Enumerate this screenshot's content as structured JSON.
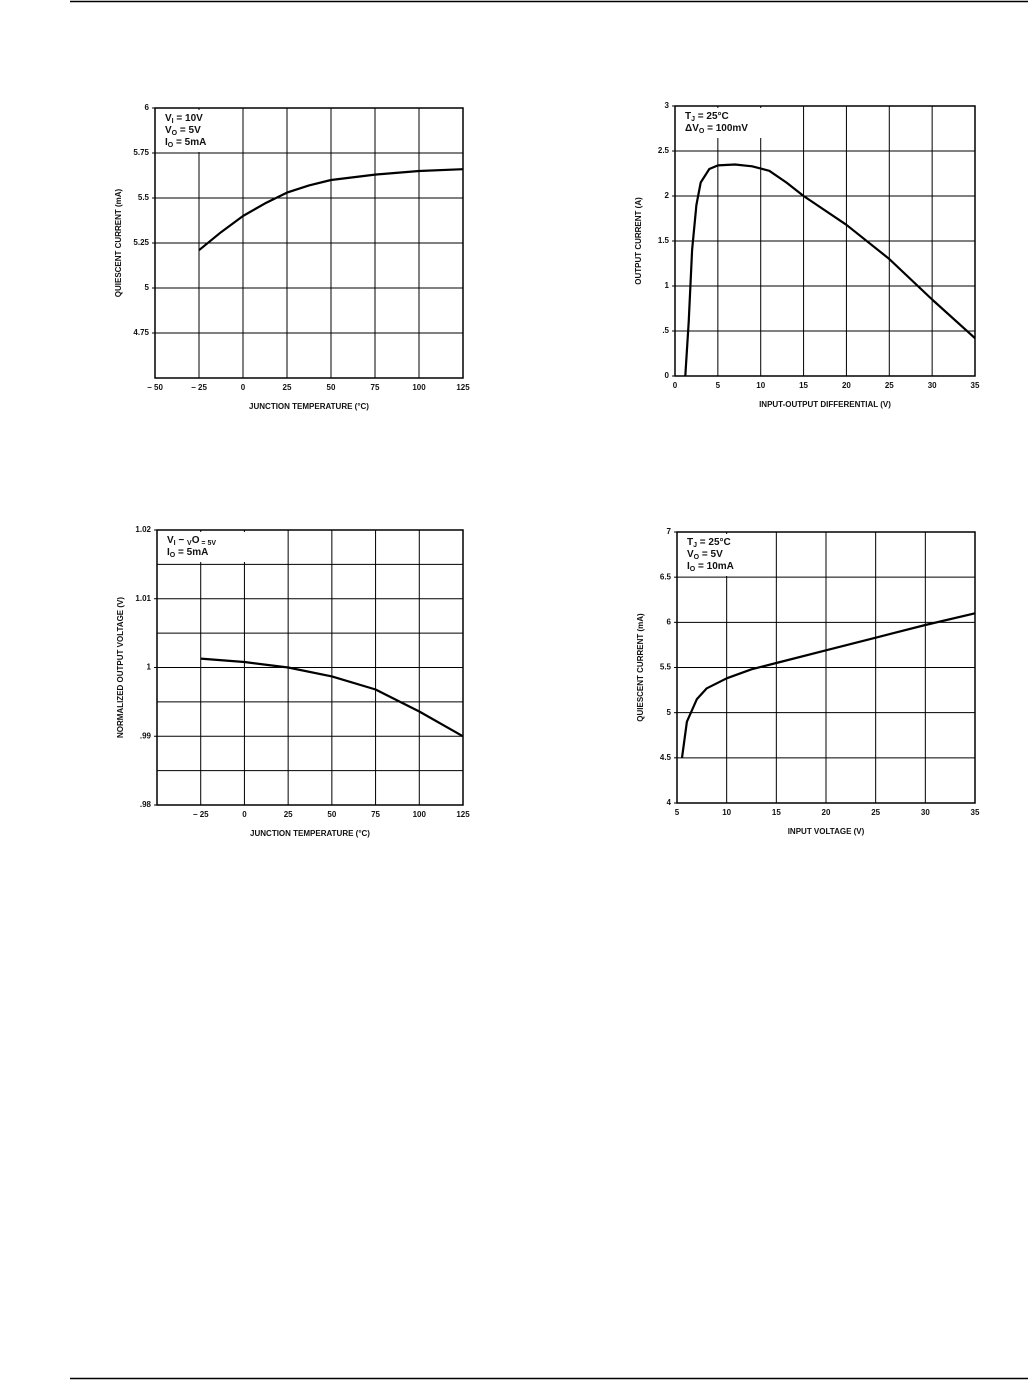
{
  "chart_data": [
    {
      "type": "line",
      "xlabel": "JUNCTION TEMPERATURE (°C)",
      "ylabel": "QUIESCENT CURRENT (mA)",
      "color": "#000000",
      "x": [
        -25,
        -12.5,
        0,
        12.5,
        25,
        37.5,
        50,
        75,
        100,
        125
      ],
      "values": [
        5.21,
        5.31,
        5.4,
        5.47,
        5.53,
        5.57,
        5.6,
        5.63,
        5.65,
        5.66
      ],
      "xlim": [
        -50,
        125
      ],
      "ylim": [
        4.5,
        6
      ],
      "xticks": [
        {
          "value": -50,
          "label": "− 50"
        },
        {
          "value": -25,
          "label": "− 25"
        },
        0,
        25,
        50,
        75,
        100,
        125
      ],
      "yticks": [
        4.75,
        5,
        5.25,
        5.5,
        5.75,
        6
      ],
      "ygrid": [
        4.75,
        5,
        5.25,
        5.5,
        5.75
      ],
      "annotations": [
        [
          "V",
          "I",
          " = 10V"
        ],
        [
          "V",
          "O",
          " = 5V"
        ],
        [
          "I",
          "O",
          " = 5mA"
        ]
      ]
    },
    {
      "type": "line",
      "xlabel": "INPUT-OUTPUT DIFFERENTIAL (V)",
      "ylabel": "OUTPUT CURRENT (A)",
      "color": "#000000",
      "x": [
        1.2,
        1.6,
        2,
        2.5,
        3,
        4,
        5,
        7,
        9,
        11,
        13,
        15,
        20,
        25,
        30,
        35
      ],
      "values": [
        0,
        0.6,
        1.4,
        1.9,
        2.15,
        2.3,
        2.34,
        2.35,
        2.33,
        2.28,
        2.15,
        2,
        1.68,
        1.3,
        0.85,
        0.42
      ],
      "xlim": [
        0,
        35
      ],
      "ylim": [
        0,
        3
      ],
      "xticks": [
        0,
        5,
        10,
        15,
        20,
        25,
        30,
        35
      ],
      "yticks": [
        0,
        {
          "value": 0.5,
          "label": ".5"
        },
        1,
        1.5,
        2,
        2.5,
        3
      ],
      "ygrid": [
        0.5,
        1,
        1.5,
        2,
        2.5
      ],
      "annotations": [
        [
          "T",
          "J",
          " = 25°C"
        ],
        [
          "ΔV",
          "O",
          " = 100mV"
        ]
      ]
    },
    {
      "type": "line",
      "xlabel": "JUNCTION TEMPERATURE (°C)",
      "ylabel": "NORMALIZED OUTPUT VOLTAGE (V)",
      "color": "#000000",
      "x": [
        -25,
        0,
        25,
        50,
        75,
        100,
        125
      ],
      "values": [
        1.0013,
        1.0008,
        1,
        0.9987,
        0.9968,
        0.9936,
        0.99
      ],
      "xlim": [
        -50,
        125
      ],
      "ylim": [
        0.98,
        1.02
      ],
      "xticks": [
        {
          "value": -25,
          "label": "− 25"
        },
        0,
        25,
        50,
        75,
        100,
        125
      ],
      "yticks": [
        {
          "value": 0.98,
          "label": ".98"
        },
        {
          "value": 0.99,
          "label": ".99"
        },
        1,
        1.01,
        1.02
      ],
      "ygrid": [
        0.985,
        0.99,
        0.995,
        1,
        1.005,
        1.01,
        1.015
      ],
      "annotations": [
        [
          "V",
          "I",
          " − ",
          "V",
          "O",
          " = 5V"
        ],
        [
          "I",
          "O",
          " = 5mA"
        ]
      ]
    },
    {
      "type": "line",
      "xlabel": "INPUT VOLTAGE (V)",
      "ylabel": "QUIESCENT CURRENT (mA)",
      "color": "#000000",
      "x": [
        5.5,
        6,
        7,
        8,
        10,
        12.5,
        15,
        20,
        25,
        30,
        35
      ],
      "values": [
        4.5,
        4.9,
        5.15,
        5.27,
        5.38,
        5.48,
        5.55,
        5.69,
        5.83,
        5.97,
        6.1
      ],
      "xlim": [
        5,
        35
      ],
      "ylim": [
        4,
        7
      ],
      "xticks": [
        5,
        10,
        15,
        20,
        25,
        30,
        35
      ],
      "yticks": [
        4,
        4.5,
        5,
        5.5,
        6,
        6.5,
        7
      ],
      "ygrid": [
        4.5,
        5,
        5.5,
        6,
        6.5
      ],
      "annotations": [
        [
          "T",
          "J",
          " = 25°C"
        ],
        [
          "V",
          "O",
          " = 5V"
        ],
        [
          "I",
          "O",
          " = 10mA"
        ]
      ]
    }
  ]
}
